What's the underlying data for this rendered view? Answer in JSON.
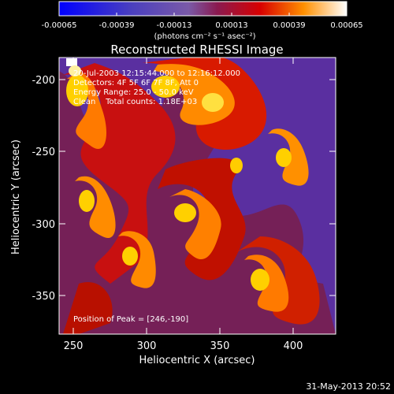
{
  "colorbar": {
    "tick_labels": [
      "-0.00065",
      "-0.00039",
      "-0.00013",
      "0.00013",
      "0.00039",
      "0.00065"
    ],
    "units_text": "(photons cm⁻² s⁻¹ asec⁻²)"
  },
  "plot": {
    "title": "Reconstructed RHESSI Image",
    "x_label": "Heliocentric X (arcsec)",
    "y_label": "Heliocentric Y (arcsec)",
    "x_ticks": [
      "250",
      "300",
      "350",
      "400"
    ],
    "y_ticks": [
      "-200",
      "-250",
      "-300",
      "-350"
    ],
    "annotations": [
      "20-Jul-2003 12:15:44.000 to 12:16:12.000",
      "Detectors: 4F 5F 6F 7F 8F, Att 0",
      "Energy Range: 25.0 - 50.0 keV",
      "Clean    Total counts: 1.18E+03"
    ],
    "peak_label": "Position of Peak = [246,-190]"
  },
  "footer": {
    "timestamp": "31-May-2013 20:52"
  }
}
